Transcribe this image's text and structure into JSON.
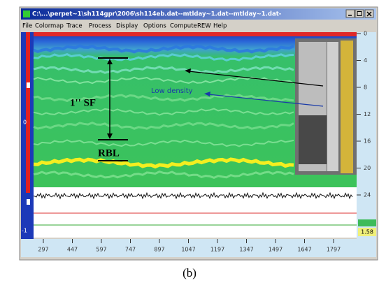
{
  "window": {
    "title": "C:\\...\\perpet~1\\sh114gpr\\2006\\sh114eb.dat--mtlday~1.dat--mtlday~1.dat-"
  },
  "menu": {
    "items": [
      "File",
      "Colormap",
      "Trace",
      "Process",
      "Display",
      "Options",
      "Compute",
      "REW",
      "Help"
    ]
  },
  "annotations": {
    "thickness": "1'' SF",
    "rbl": "RBL",
    "low_density": "Low density"
  },
  "depth_scale": {
    "ticks": [
      0,
      4,
      8,
      12,
      16,
      20,
      24
    ]
  },
  "trace_scale": {
    "ticks": [
      297,
      447,
      597,
      747,
      897,
      1047,
      1197,
      1347,
      1497,
      1647,
      1797
    ]
  },
  "left_scale": {
    "labels": [
      "0",
      "-1"
    ]
  },
  "readout": {
    "value": "1.58"
  },
  "caption": "(b)"
}
